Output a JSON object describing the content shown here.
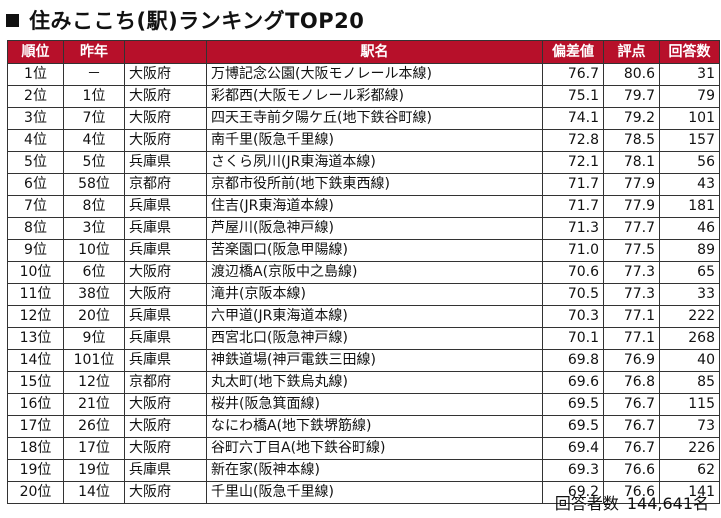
{
  "title": "住みここち(駅)ランキングTOP20",
  "columns": [
    "順位",
    "昨年",
    "",
    "駅名",
    "偏差値",
    "評点",
    "回答数"
  ],
  "rows": [
    {
      "rank": "1位",
      "prev": "－",
      "pref": "大阪府",
      "station": "万博記念公園(大阪モノレール本線)",
      "dev": "76.7",
      "score": "80.6",
      "n": "31"
    },
    {
      "rank": "2位",
      "prev": "1位",
      "pref": "大阪府",
      "station": "彩都西(大阪モノレール彩都線)",
      "dev": "75.1",
      "score": "79.7",
      "n": "79"
    },
    {
      "rank": "3位",
      "prev": "7位",
      "pref": "大阪府",
      "station": "四天王寺前夕陽ケ丘(地下鉄谷町線)",
      "dev": "74.1",
      "score": "79.2",
      "n": "101"
    },
    {
      "rank": "4位",
      "prev": "4位",
      "pref": "大阪府",
      "station": "南千里(阪急千里線)",
      "dev": "72.8",
      "score": "78.5",
      "n": "157"
    },
    {
      "rank": "5位",
      "prev": "5位",
      "pref": "兵庫県",
      "station": "さくら夙川(JR東海道本線)",
      "dev": "72.1",
      "score": "78.1",
      "n": "56"
    },
    {
      "rank": "6位",
      "prev": "58位",
      "pref": "京都府",
      "station": "京都市役所前(地下鉄東西線)",
      "dev": "71.7",
      "score": "77.9",
      "n": "43"
    },
    {
      "rank": "7位",
      "prev": "8位",
      "pref": "兵庫県",
      "station": "住吉(JR東海道本線)",
      "dev": "71.7",
      "score": "77.9",
      "n": "181"
    },
    {
      "rank": "8位",
      "prev": "3位",
      "pref": "兵庫県",
      "station": "芦屋川(阪急神戸線)",
      "dev": "71.3",
      "score": "77.7",
      "n": "46"
    },
    {
      "rank": "9位",
      "prev": "10位",
      "pref": "兵庫県",
      "station": "苦楽園口(阪急甲陽線)",
      "dev": "71.0",
      "score": "77.5",
      "n": "89"
    },
    {
      "rank": "10位",
      "prev": "6位",
      "pref": "大阪府",
      "station": "渡辺橋A(京阪中之島線)",
      "dev": "70.6",
      "score": "77.3",
      "n": "65"
    },
    {
      "rank": "11位",
      "prev": "38位",
      "pref": "大阪府",
      "station": "滝井(京阪本線)",
      "dev": "70.5",
      "score": "77.3",
      "n": "33"
    },
    {
      "rank": "12位",
      "prev": "20位",
      "pref": "兵庫県",
      "station": "六甲道(JR東海道本線)",
      "dev": "70.3",
      "score": "77.1",
      "n": "222"
    },
    {
      "rank": "13位",
      "prev": "9位",
      "pref": "兵庫県",
      "station": "西宮北口(阪急神戸線)",
      "dev": "70.1",
      "score": "77.1",
      "n": "268"
    },
    {
      "rank": "14位",
      "prev": "101位",
      "pref": "兵庫県",
      "station": "神鉄道場(神戸電鉄三田線)",
      "dev": "69.8",
      "score": "76.9",
      "n": "40"
    },
    {
      "rank": "15位",
      "prev": "12位",
      "pref": "京都府",
      "station": "丸太町(地下鉄烏丸線)",
      "dev": "69.6",
      "score": "76.8",
      "n": "85"
    },
    {
      "rank": "16位",
      "prev": "21位",
      "pref": "大阪府",
      "station": "桜井(阪急箕面線)",
      "dev": "69.5",
      "score": "76.7",
      "n": "115"
    },
    {
      "rank": "17位",
      "prev": "26位",
      "pref": "大阪府",
      "station": "なにわ橋A(地下鉄堺筋線)",
      "dev": "69.5",
      "score": "76.7",
      "n": "73"
    },
    {
      "rank": "18位",
      "prev": "17位",
      "pref": "大阪府",
      "station": "谷町六丁目A(地下鉄谷町線)",
      "dev": "69.4",
      "score": "76.7",
      "n": "226"
    },
    {
      "rank": "19位",
      "prev": "19位",
      "pref": "兵庫県",
      "station": "新在家(阪神本線)",
      "dev": "69.3",
      "score": "76.6",
      "n": "62"
    },
    {
      "rank": "20位",
      "prev": "14位",
      "pref": "大阪府",
      "station": "千里山(阪急千里線)",
      "dev": "69.2",
      "score": "76.6",
      "n": "141"
    }
  ],
  "footer": {
    "label": "回答者数",
    "value": "144,641名"
  },
  "colors": {
    "header_bg": "#b7102a",
    "header_text": "#ffffff"
  }
}
